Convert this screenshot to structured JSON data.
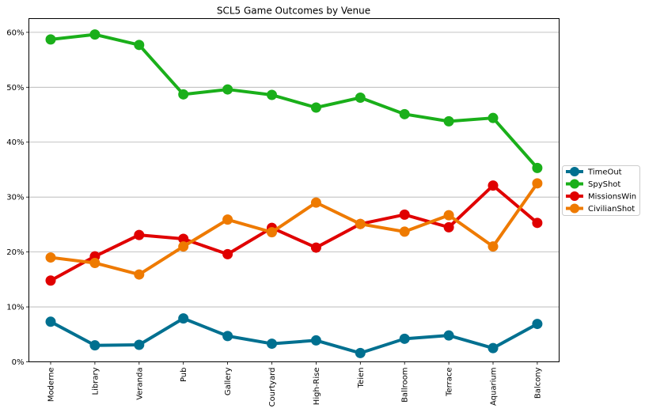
{
  "chart_data": {
    "type": "line",
    "title": "SCL5 Game Outcomes by Venue",
    "xlabel": "",
    "ylabel": "",
    "categories": [
      "Moderne",
      "Library",
      "Veranda",
      "Pub",
      "Gallery",
      "Courtyard",
      "High-Rise",
      "Teien",
      "Ballroom",
      "Terrace",
      "Aquarium",
      "Balcony"
    ],
    "ylim": [
      0,
      0.625
    ],
    "yticks": [
      0,
      0.1,
      0.2,
      0.3,
      0.4,
      0.5,
      0.6
    ],
    "ytick_labels": [
      "0%",
      "10%",
      "20%",
      "30%",
      "40%",
      "50%",
      "60%"
    ],
    "grid": "horizontal",
    "legend_position": "right",
    "series": [
      {
        "name": "TimeOut",
        "color": "#007090",
        "values": [
          0.073,
          0.03,
          0.031,
          0.079,
          0.047,
          0.033,
          0.039,
          0.016,
          0.042,
          0.048,
          0.025,
          0.069
        ]
      },
      {
        "name": "SpyShot",
        "color": "#1aaf1a",
        "values": [
          0.587,
          0.596,
          0.577,
          0.487,
          0.496,
          0.486,
          0.463,
          0.481,
          0.451,
          0.438,
          0.444,
          0.353
        ]
      },
      {
        "name": "MissionsWin",
        "color": "#e00000",
        "values": [
          0.148,
          0.192,
          0.231,
          0.224,
          0.196,
          0.244,
          0.208,
          0.251,
          0.268,
          0.245,
          0.321,
          0.253
        ]
      },
      {
        "name": "CivilianShot",
        "color": "#ee7a00",
        "values": [
          0.19,
          0.18,
          0.159,
          0.21,
          0.259,
          0.236,
          0.29,
          0.251,
          0.237,
          0.267,
          0.21,
          0.325
        ]
      }
    ]
  }
}
